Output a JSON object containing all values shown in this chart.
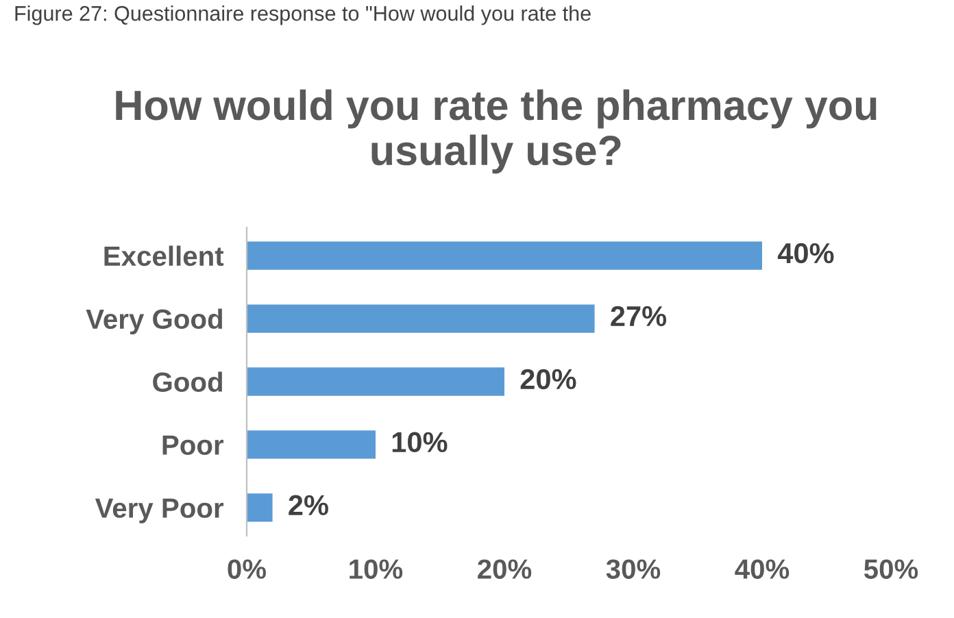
{
  "chart_data": {
    "type": "bar",
    "orientation": "horizontal",
    "title": "How would you rate the pharmacy you usually use?",
    "annotations": [
      "Figure 27: Questionnaire response to \"How would you rate the"
    ],
    "categories": [
      "Excellent",
      "Very Good",
      "Good",
      "Poor",
      "Very Poor"
    ],
    "values": [
      40,
      27,
      20,
      10,
      2
    ],
    "value_labels": [
      "40%",
      "27%",
      "20%",
      "10%",
      "2%"
    ],
    "color": "#5b9bd5",
    "xlim": [
      0,
      50
    ],
    "xticks": [
      {
        "value": 0,
        "label": "0%"
      },
      {
        "value": 10,
        "label": "10%"
      },
      {
        "value": 20,
        "label": "20%"
      },
      {
        "value": 30,
        "label": "30%"
      },
      {
        "value": 40,
        "label": "40%"
      },
      {
        "value": 50,
        "label": "50%"
      }
    ],
    "grid": false
  }
}
